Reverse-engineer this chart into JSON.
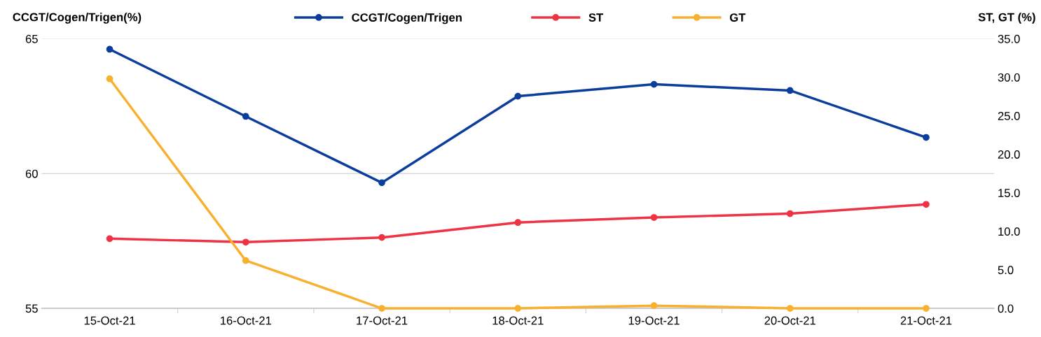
{
  "chart_data": {
    "type": "line",
    "ylabel": "CCGT/Cogen/Trigen(%)",
    "y2label": "ST, GT (%)",
    "categories": [
      "15-Oct-21",
      "16-Oct-21",
      "17-Oct-21",
      "18-Oct-21",
      "19-Oct-21",
      "20-Oct-21",
      "21-Oct-21"
    ],
    "series": [
      {
        "name": "CCGT/Cogen/Trigen",
        "color": "#0a3d9c",
        "values": [
          64.61,
          62.12,
          59.66,
          62.87,
          63.31,
          63.08,
          61.34
        ]
      },
      {
        "name": "ST",
        "color": "#ee3444",
        "axis": "y2",
        "values": [
          9.05,
          8.6,
          9.2,
          11.15,
          11.8,
          12.3,
          13.5
        ]
      },
      {
        "name": "GT",
        "color": "#f7b12f",
        "axis": "y2",
        "values": [
          29.8,
          6.2,
          0.0,
          0.0,
          0.35,
          0.0,
          0.0
        ]
      }
    ],
    "ylim": [
      55,
      65
    ],
    "yticks": [
      55,
      60,
      65
    ],
    "y2lim": [
      0,
      35
    ],
    "y2ticks": [
      {
        "value": 0,
        "label": "0.0"
      },
      {
        "value": 5,
        "label": "5.0"
      },
      {
        "value": 10,
        "label": "10.0"
      },
      {
        "value": 15,
        "label": "15.0"
      },
      {
        "value": 20,
        "label": "20.0"
      },
      {
        "value": 25,
        "label": "25.0"
      },
      {
        "value": 30,
        "label": "30.0"
      },
      {
        "value": 35,
        "label": "35.0"
      }
    ],
    "grid": "y",
    "legend": "top",
    "marker": "circle",
    "line_style": "solid"
  }
}
